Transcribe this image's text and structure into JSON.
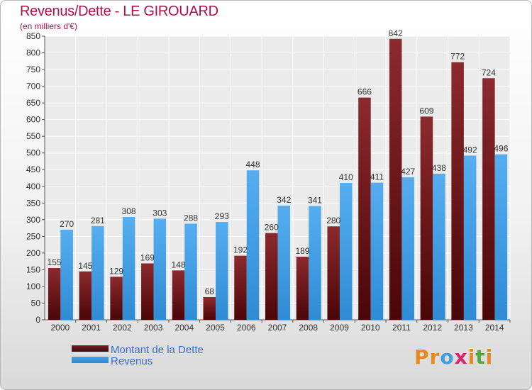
{
  "title": "Revenus/Dette - LE GIROUARD",
  "subtitle": "(en milliers d'€)",
  "colors": {
    "dette": "#7a1f24",
    "revenus": "#4aa3e6",
    "title": "#b0104a",
    "legend_text": "#3a6ad4"
  },
  "legend": [
    {
      "label": "Montant de la Dette",
      "color": "#7a1f24"
    },
    {
      "label": "Revenus",
      "color": "#4aa3e6"
    }
  ],
  "logo": {
    "text": "Proxiti",
    "letters": [
      {
        "ch": "P",
        "color": "#e8891f"
      },
      {
        "ch": "r",
        "color": "#e8891f"
      },
      {
        "ch": "o",
        "color": "#3f9ee0"
      },
      {
        "ch": "x",
        "color": "#d42a6c"
      },
      {
        "ch": "i",
        "color": "#e8891f"
      },
      {
        "ch": "t",
        "color": "#55a83d"
      },
      {
        "ch": "i",
        "color": "#e8891f"
      }
    ]
  },
  "chart_data": {
    "type": "bar",
    "title": "Revenus/Dette - LE GIROUARD",
    "subtitle": "(en milliers d'€)",
    "categories": [
      "2000",
      "2001",
      "2002",
      "2003",
      "2004",
      "2005",
      "2006",
      "2007",
      "2008",
      "2009",
      "2010",
      "2011",
      "2012",
      "2013",
      "2014"
    ],
    "series": [
      {
        "name": "Montant de la Dette",
        "values": [
          155,
          145,
          129,
          169,
          148,
          68,
          192,
          260,
          189,
          280,
          666,
          842,
          609,
          772,
          724
        ]
      },
      {
        "name": "Revenus",
        "values": [
          270,
          281,
          308,
          303,
          288,
          293,
          448,
          342,
          341,
          410,
          411,
          427,
          438,
          492,
          496
        ]
      }
    ],
    "ylim": [
      0,
      850
    ],
    "yticks": [
      0,
      50,
      100,
      150,
      200,
      250,
      300,
      350,
      400,
      450,
      500,
      550,
      600,
      650,
      700,
      750,
      800,
      850
    ],
    "grid": true,
    "legend_position": "bottom-left"
  }
}
